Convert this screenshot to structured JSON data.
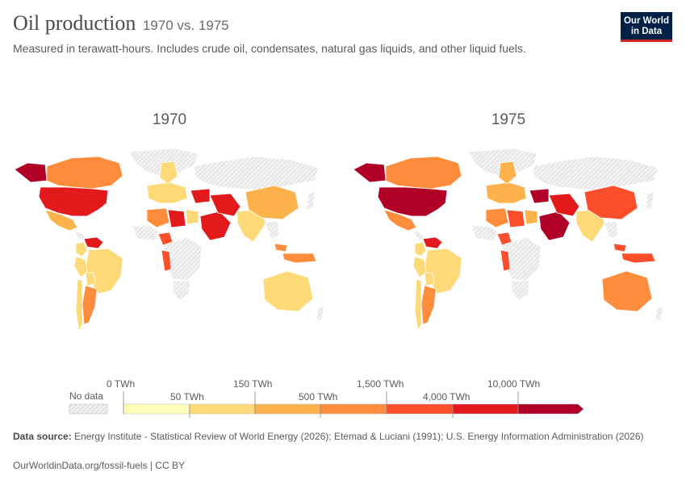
{
  "header": {
    "title": "Oil production",
    "title_suffix": "1970 vs. 1975",
    "subtitle": "Measured in terawatt-hours. Includes crude oil, condensates, natural gas liquids, and other liquid fuels."
  },
  "logo": {
    "line1": "Our World",
    "line2": "in Data"
  },
  "maps": [
    {
      "year": "1970",
      "highlights": {
        "north_america_usa": 5,
        "canada": 3,
        "alaska": 6,
        "mexico": 2,
        "venezuela": 5,
        "brazil": 1,
        "argentina": 3,
        "south_america": 1,
        "europe_north_sea": 1,
        "ussr": 0,
        "libya": 5,
        "algeria": 3,
        "nigeria": 4,
        "middle_east": 5,
        "iran": 5,
        "china": 2,
        "india": 1,
        "indonesia": 3,
        "australia": 1
      }
    },
    {
      "year": "1975",
      "highlights": {
        "north_america_usa": 6,
        "canada": 3,
        "alaska": 6,
        "mexico": 3,
        "venezuela": 5,
        "brazil": 1,
        "argentina": 3,
        "south_america": 1,
        "europe_north_sea": 2,
        "ussr": 0,
        "libya": 4,
        "algeria": 3,
        "nigeria": 4,
        "middle_east": 6,
        "iran": 5,
        "china": 4,
        "india": 1,
        "indonesia": 4,
        "australia": 3
      }
    }
  ],
  "legend": {
    "no_data_label": "No data",
    "top_labels": [
      "0 TWh",
      "150 TWh",
      "1,500 TWh",
      "10,000 TWh"
    ],
    "bottom_labels": [
      "50 TWh",
      "500 TWh",
      "4,000 TWh"
    ],
    "colors": [
      "#fefdb8",
      "#fed977",
      "#feb24c",
      "#fd8d3c",
      "#fc4e2a",
      "#e31a1c",
      "#b10026"
    ],
    "no_data_color": "#e8e8e8"
  },
  "footer": {
    "source_label": "Data source:",
    "source_text": "Energy Institute - Statistical Review of World Energy (2026); Etemad & Luciani (1991); U.S. Energy Information Administration (2026)",
    "url": "OurWorldinData.org/fossil-fuels | CC BY"
  }
}
